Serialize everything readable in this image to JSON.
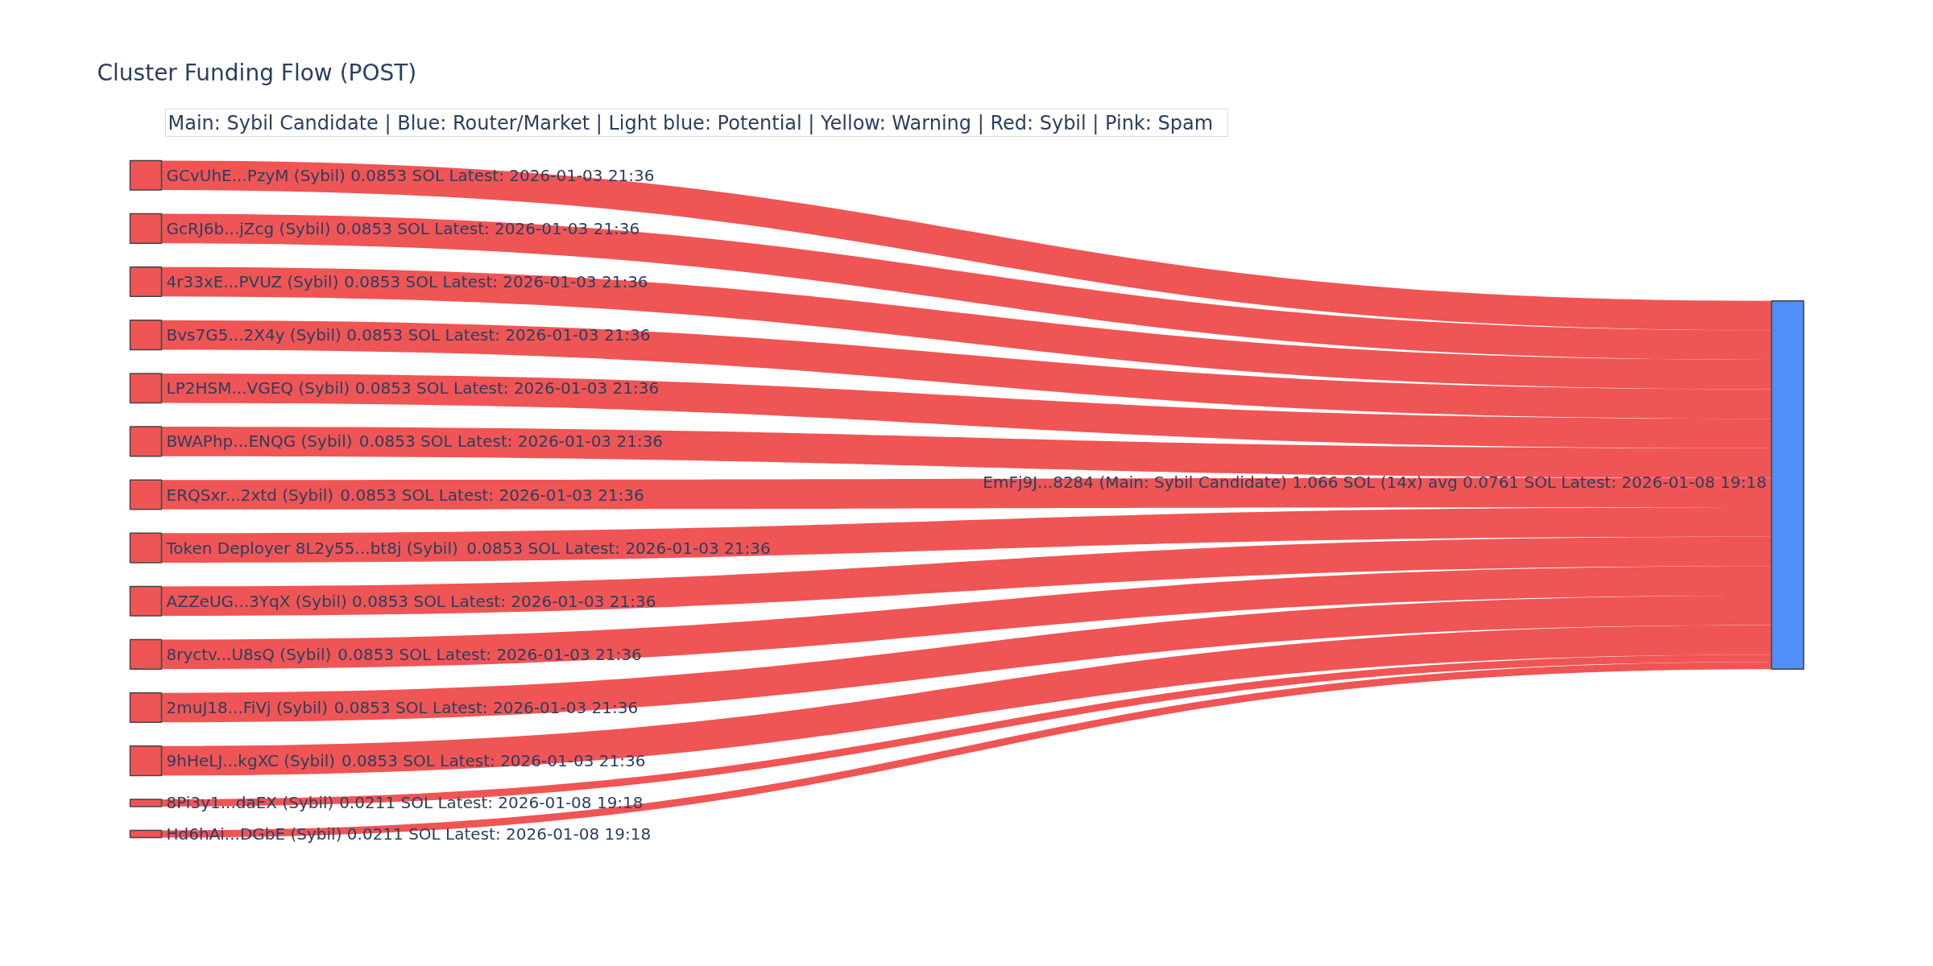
{
  "chart_data": {
    "type": "other",
    "title": "Cluster Funding Flow (POST)",
    "categories": [
      "GCvUhE...PzyM (Sybil)",
      "GcRJ6b...jZcg (Sybil)",
      "4r33xE...PVUZ (Sybil)",
      "Bvs7G5...2X4y (Sybil)",
      "LP2HSM...VGEQ (Sybil)",
      "BWAPhp...ENQG (Sybil)",
      "ERQSxr...2xtd (Sybil)",
      "Token Deployer 8L2y55...bt8j (Sybil)",
      "AZZeUG...3YqX (Sybil)",
      "8ryctv...U8sQ (Sybil)",
      "2muJ18...FiVj (Sybil)",
      "9hHeLJ...kgXC (Sybil)",
      "8Pi3y1...daEX (Sybil)",
      "Hd6hAi...DGbE (Sybil)"
    ],
    "series": [
      {
        "name": "EmFj9J...8284 (Main: Sybil Candidate) 1.066 SOL (14x) avg 0.0761 SOL Latest: 2026-01-08 19:18",
        "color": "#4f8ff7",
        "colors": [
          "#ef5555",
          "#ef5555",
          "#ef5555",
          "#ef5555",
          "#ef5555",
          "#ef5555",
          "#ef5555",
          "#ef5555",
          "#ef5555",
          "#ef5555",
          "#ef5555",
          "#ef5555",
          "#ef5555",
          "#ef5555"
        ],
        "values": [
          0.0853,
          0.0853,
          0.0853,
          0.0853,
          0.0853,
          0.0853,
          0.0853,
          0.0853,
          0.0853,
          0.0853,
          0.0853,
          0.0853,
          0.0211,
          0.0211
        ],
        "value_labels": [
          "0.0853 SOL Latest: 2026-01-03 21:36",
          "0.0853 SOL Latest: 2026-01-03 21:36",
          "0.0853 SOL Latest: 2026-01-03 21:36",
          "0.0853 SOL Latest: 2026-01-03 21:36",
          "0.0853 SOL Latest: 2026-01-03 21:36",
          "0.0853 SOL Latest: 2026-01-03 21:36",
          "0.0853 SOL Latest: 2026-01-03 21:36",
          "0.0853 SOL Latest: 2026-01-03 21:36",
          "0.0853 SOL Latest: 2026-01-03 21:36",
          "0.0853 SOL Latest: 2026-01-03 21:36",
          "0.0853 SOL Latest: 2026-01-03 21:36",
          "0.0853 SOL Latest: 2026-01-03 21:36",
          "0.0211 SOL Latest: 2026-01-08 19:18",
          "0.0211 SOL Latest: 2026-01-08 19:18"
        ]
      }
    ],
    "annotations": [
      "Main: Sybil Candidate  |  Blue: Router/Market | Light blue: Potential | Yellow: Warning | Red: Sybil | Pink: Spam"
    ]
  }
}
